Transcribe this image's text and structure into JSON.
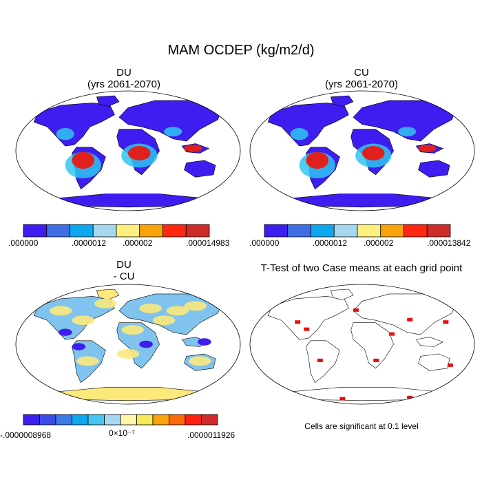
{
  "figure": {
    "title": "MAM OCDEP (kg/m2/d)",
    "footnote": "Cells are significant at 0.1 level"
  },
  "colors": {
    "scale8": [
      "#3e1df1",
      "#3f6ee6",
      "#0fa7ef",
      "#a5d8ef",
      "#fdf07d",
      "#f7a40a",
      "#fd2712",
      "#cd2a2a"
    ],
    "scale12": [
      "#3e1df1",
      "#3b4be8",
      "#3f7ae9",
      "#0fa7ef",
      "#46c4f2",
      "#a5d8ef",
      "#fff7a8",
      "#f7e85c",
      "#f9a40a",
      "#fb6a0d",
      "#fd1f12",
      "#d22a2a"
    ],
    "land_low": "#3e1df1",
    "land_mid": "#2fc6f1",
    "land_high": "#e0201d",
    "diff_pos": "#fbe97c",
    "diff_neg": "#7fc3ee",
    "significant": "#e80c0c"
  },
  "chart_data": [
    {
      "type": "heatmap",
      "panel": "top-left",
      "title": "DU",
      "subtitle": "(yrs 2061-2070)",
      "colorbar": {
        "levels": 8,
        "labels": [
          ".000000",
          ".0000012",
          ".000002",
          ".000014983"
        ],
        "min": 0.0,
        "max": 1.4983e-05
      }
    },
    {
      "type": "heatmap",
      "panel": "top-right",
      "title": "CU",
      "subtitle": "(yrs 2061-2070)",
      "colorbar": {
        "levels": 8,
        "labels": [
          ".000000",
          ".0000012",
          ".000002",
          ".000013842"
        ],
        "min": 0.0,
        "max": 1.3842e-05
      }
    },
    {
      "type": "heatmap",
      "panel": "bottom-left",
      "title": "DU",
      "subtitle": "- CU",
      "colorbar": {
        "levels": 12,
        "labels": [
          "-.0000008968",
          "0×10⁻⁷",
          ".0000011926"
        ],
        "min": -8.968e-07,
        "max": 1.1926e-06
      }
    },
    {
      "type": "heatmap",
      "panel": "bottom-right",
      "title": "T-Test of two Case means at each grid point",
      "subtitle": "",
      "significance_level": 0.1
    }
  ]
}
